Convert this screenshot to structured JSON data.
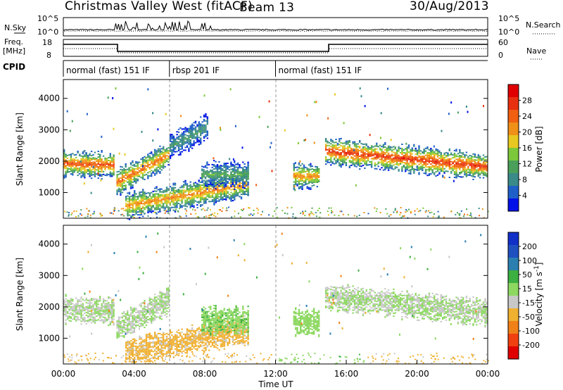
{
  "header": {
    "station": "Christmas Valley West (fitACF)",
    "beam": "Beam 13",
    "date": "30/Aug/2013"
  },
  "noise_panel": {
    "left_label": "N.Sky",
    "left_ticks": [
      "10^5",
      "10^0"
    ],
    "right_label": "N.Search",
    "right_ticks": [
      "10^5",
      "10^0"
    ]
  },
  "freq_panel": {
    "left_label_1": "Freq.",
    "left_label_2": "[MHz]",
    "left_ticks": [
      "18",
      "8"
    ],
    "right_label": "Nave",
    "right_ticks": [
      "60",
      "0"
    ],
    "cpid_label": "CPID"
  },
  "cpid_segments": [
    {
      "label": "normal (fast) 151 IF",
      "start_hour": 0,
      "end_hour": 6
    },
    {
      "label": "rbsp 201 IF",
      "start_hour": 6,
      "end_hour": 12
    },
    {
      "label": "normal (fast) 151 IF",
      "start_hour": 12,
      "end_hour": 24
    }
  ],
  "chart_data": [
    {
      "type": "heatmap",
      "name": "power",
      "ylabel": "Slant Range [km]",
      "y_ticks": [
        1000,
        2000,
        3000,
        4000
      ],
      "ylim": [
        180,
        4600
      ],
      "xlim_hours": [
        0,
        24
      ],
      "colorbar": {
        "label": "Power [dB]",
        "ticks": [
          "4",
          "8",
          "12",
          "16",
          "20",
          "24",
          "28"
        ],
        "range": [
          0,
          32
        ],
        "colors": [
          "#0010e8",
          "#1f5fc8",
          "#3a8a8a",
          "#4aa05a",
          "#7cc83a",
          "#e8c820",
          "#f09018",
          "#f06010",
          "#e83010",
          "#e00000"
        ]
      },
      "echo_bands": [
        {
          "start_hour": 0.0,
          "end_hour": 2.9,
          "center_km_start": 1900,
          "center_km_end": 1850,
          "peak_db": 26
        },
        {
          "start_hour": 3.0,
          "end_hour": 6.0,
          "center_km_start": 1300,
          "center_km_end": 2200,
          "peak_db": 24
        },
        {
          "start_hour": 3.5,
          "end_hour": 10.5,
          "center_km_start": 550,
          "center_km_end": 1250,
          "peak_db": 22
        },
        {
          "start_hour": 6.0,
          "end_hour": 8.2,
          "center_km_start": 2450,
          "center_km_end": 3100,
          "peak_db": 10
        },
        {
          "start_hour": 7.8,
          "end_hour": 10.5,
          "center_km_start": 1550,
          "center_km_end": 1550,
          "peak_db": 12
        },
        {
          "start_hour": 13.0,
          "end_hour": 14.5,
          "center_km_start": 1500,
          "center_km_end": 1500,
          "peak_db": 22
        },
        {
          "start_hour": 14.8,
          "end_hour": 24.0,
          "center_km_start": 2300,
          "center_km_end": 1800,
          "peak_db": 28
        }
      ]
    },
    {
      "type": "heatmap",
      "name": "velocity",
      "ylabel": "Slant Range [km]",
      "y_ticks": [
        1000,
        2000,
        3000,
        4000
      ],
      "ylim": [
        180,
        4600
      ],
      "xlim_hours": [
        0,
        24
      ],
      "xlabel": "Time UT",
      "x_ticks": [
        "00:00",
        "04:00",
        "08:00",
        "12:00",
        "16:00",
        "20:00",
        "00:00"
      ],
      "colorbar": {
        "label": "Velocity [m s^-1]",
        "ticks": [
          "200",
          "100",
          "50",
          "15",
          "-15",
          "-50",
          "-100",
          "-200"
        ],
        "range": [
          -250,
          250
        ],
        "colors": [
          "#e00000",
          "#f04010",
          "#f08018",
          "#f0b030",
          "#c8c8c8",
          "#8cd860",
          "#3cb040",
          "#2a7fb0",
          "#1f50c0",
          "#1030c8"
        ]
      },
      "echo_bands": [
        {
          "start_hour": 0.0,
          "end_hour": 2.9,
          "center_km_start": 1900,
          "center_km_end": 1850,
          "velocity": 0
        },
        {
          "start_hour": 3.0,
          "end_hour": 6.0,
          "center_km_start": 1300,
          "center_km_end": 2200,
          "velocity": 0
        },
        {
          "start_hour": 3.5,
          "end_hour": 10.5,
          "center_km_start": 550,
          "center_km_end": 1250,
          "velocity": -60
        },
        {
          "start_hour": 7.8,
          "end_hour": 10.5,
          "center_km_start": 1550,
          "center_km_end": 1550,
          "velocity": 40
        },
        {
          "start_hour": 13.0,
          "end_hour": 14.5,
          "center_km_start": 1500,
          "center_km_end": 1500,
          "velocity": 20
        },
        {
          "start_hour": 14.8,
          "end_hour": 24.0,
          "center_km_start": 2300,
          "center_km_end": 1800,
          "velocity": 0
        }
      ]
    }
  ]
}
